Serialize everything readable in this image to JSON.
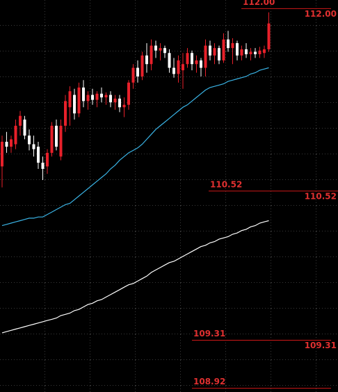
{
  "chart_data": {
    "type": "candlestick",
    "ylim": [
      108.89,
      112.07
    ],
    "up_color": "#e8202a",
    "down_color": "#ffffff",
    "level_color": "#d01818",
    "open": [
      110.72,
      110.92,
      110.88,
      110.9,
      111.05,
      111.1,
      110.97,
      110.9,
      110.88,
      110.75,
      110.72,
      110.83,
      111.05,
      110.8,
      111.05,
      111.2,
      111.3,
      111.15,
      111.36,
      111.25,
      111.3,
      111.26,
      111.31,
      111.28,
      111.3,
      111.24,
      111.27,
      111.2,
      111.22,
      111.4,
      111.52,
      111.45,
      111.62,
      111.55,
      111.7,
      111.66,
      111.68,
      111.64,
      111.52,
      111.47,
      111.5,
      111.55,
      111.64,
      111.55,
      111.58,
      111.52,
      111.7,
      111.62,
      111.68,
      111.58,
      111.75,
      111.68,
      111.72,
      111.62,
      111.67,
      111.63,
      111.65,
      111.63,
      111.64,
      111.67
    ],
    "high": [
      110.97,
      111.0,
      110.97,
      111.1,
      111.17,
      111.13,
      111.02,
      110.97,
      110.92,
      110.8,
      110.86,
      111.08,
      111.1,
      111.1,
      111.3,
      111.37,
      111.35,
      111.4,
      111.42,
      111.33,
      111.35,
      111.33,
      111.36,
      111.32,
      111.33,
      111.3,
      111.3,
      111.28,
      111.42,
      111.55,
      111.58,
      111.65,
      111.72,
      111.75,
      111.74,
      111.72,
      111.7,
      111.67,
      111.6,
      111.62,
      111.64,
      111.68,
      111.66,
      111.62,
      111.6,
      111.75,
      111.74,
      111.72,
      111.7,
      111.8,
      111.82,
      111.76,
      111.74,
      111.7,
      111.72,
      111.68,
      111.68,
      111.69,
      111.7,
      111.97
    ],
    "low": [
      110.55,
      110.83,
      110.83,
      110.86,
      110.97,
      110.94,
      110.85,
      110.8,
      110.7,
      110.61,
      110.66,
      110.8,
      110.85,
      110.77,
      111.0,
      111.05,
      111.1,
      111.12,
      111.2,
      111.18,
      111.22,
      111.2,
      111.24,
      111.22,
      111.2,
      111.18,
      111.16,
      111.12,
      111.18,
      111.35,
      111.4,
      111.42,
      111.48,
      111.5,
      111.6,
      111.58,
      111.6,
      111.48,
      111.44,
      111.4,
      111.35,
      111.52,
      111.5,
      111.48,
      111.45,
      111.45,
      111.58,
      111.55,
      111.55,
      111.56,
      111.65,
      111.55,
      111.58,
      111.58,
      111.6,
      111.58,
      111.6,
      111.6,
      111.6,
      111.65
    ],
    "close": [
      110.92,
      110.88,
      110.94,
      111.05,
      111.13,
      110.97,
      110.9,
      110.86,
      110.75,
      110.7,
      110.83,
      111.05,
      110.88,
      111.05,
      111.25,
      111.33,
      111.15,
      111.36,
      111.25,
      111.3,
      111.26,
      111.31,
      111.28,
      111.3,
      111.24,
      111.27,
      111.2,
      111.22,
      111.4,
      111.52,
      111.45,
      111.62,
      111.55,
      111.7,
      111.66,
      111.68,
      111.64,
      111.52,
      111.47,
      111.58,
      111.55,
      111.64,
      111.55,
      111.58,
      111.52,
      111.7,
      111.62,
      111.68,
      111.58,
      111.75,
      111.68,
      111.72,
      111.62,
      111.67,
      111.63,
      111.65,
      111.63,
      111.66,
      111.67,
      111.88
    ],
    "series": [
      {
        "color": "#3ab4e6",
        "values": [
          110.24,
          110.25,
          110.26,
          110.27,
          110.28,
          110.29,
          110.3,
          110.3,
          110.31,
          110.31,
          110.33,
          110.35,
          110.37,
          110.39,
          110.41,
          110.42,
          110.45,
          110.48,
          110.51,
          110.54,
          110.57,
          110.6,
          110.63,
          110.66,
          110.7,
          110.73,
          110.77,
          110.8,
          110.83,
          110.85,
          110.87,
          110.9,
          110.94,
          110.98,
          111.02,
          111.05,
          111.08,
          111.11,
          111.14,
          111.17,
          111.2,
          111.22,
          111.25,
          111.28,
          111.31,
          111.34,
          111.36,
          111.37,
          111.38,
          111.39,
          111.41,
          111.42,
          111.43,
          111.44,
          111.45,
          111.47,
          111.48,
          111.5,
          111.51,
          111.52
        ]
      },
      {
        "color": "#ffffff",
        "values": [
          109.37,
          109.38,
          109.39,
          109.4,
          109.41,
          109.42,
          109.43,
          109.44,
          109.45,
          109.46,
          109.47,
          109.48,
          109.49,
          109.51,
          109.52,
          109.53,
          109.55,
          109.56,
          109.58,
          109.6,
          109.61,
          109.63,
          109.64,
          109.66,
          109.68,
          109.7,
          109.72,
          109.74,
          109.76,
          109.77,
          109.79,
          109.81,
          109.83,
          109.86,
          109.88,
          109.9,
          109.92,
          109.94,
          109.95,
          109.97,
          109.99,
          110.01,
          110.03,
          110.05,
          110.07,
          110.08,
          110.1,
          110.11,
          110.13,
          110.14,
          110.15,
          110.17,
          110.18,
          110.2,
          110.21,
          110.23,
          110.24,
          110.26,
          110.27,
          110.28
        ]
      }
    ],
    "levels": [
      {
        "value": 112,
        "label": "112.00",
        "right_label": true
      },
      {
        "value": 110.52,
        "label": "110.52",
        "right_label": true
      },
      {
        "value": 109.31,
        "label": "109.31",
        "right_label": true
      },
      {
        "value": 108.92,
        "label": "108.92",
        "right_label": false
      }
    ]
  }
}
